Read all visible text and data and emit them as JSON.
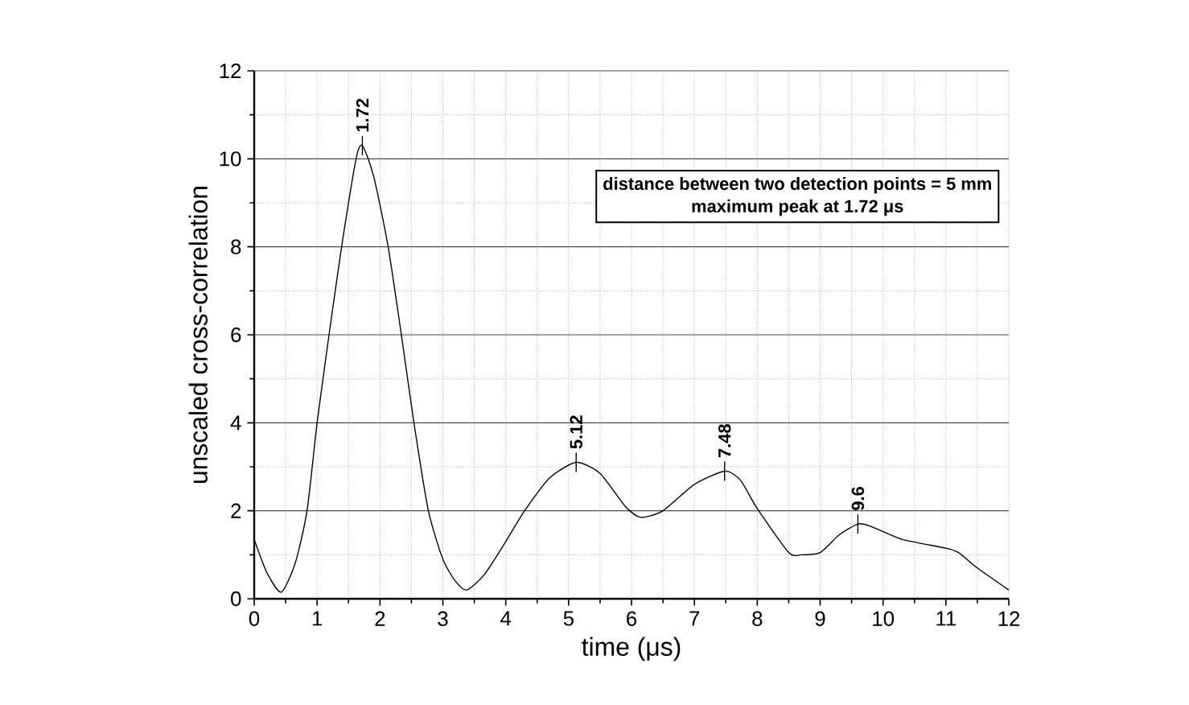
{
  "chart_data": {
    "type": "line",
    "xlabel": "time (μs)",
    "ylabel": "unscaled cross-correlation",
    "x": [
      0,
      0.2,
      0.43,
      0.65,
      0.84,
      1.0,
      1.19,
      1.39,
      1.62,
      1.72,
      1.9,
      2.13,
      2.34,
      2.54,
      2.77,
      3.0,
      3.2,
      3.38,
      3.66,
      4.0,
      4.3,
      4.7,
      5.12,
      5.5,
      5.9,
      6.15,
      6.5,
      7.0,
      7.48,
      7.73,
      8.0,
      8.5,
      8.7,
      9.0,
      9.3,
      9.6,
      9.8,
      10.3,
      11.0,
      11.2,
      11.5,
      12.0
    ],
    "series": [
      {
        "color": "#000000",
        "values": [
          1.35,
          0.6,
          0.15,
          0.8,
          2.0,
          4.0,
          6.0,
          8.0,
          10.0,
          10.3,
          9.6,
          8.0,
          6.0,
          4.0,
          2.0,
          0.9,
          0.4,
          0.2,
          0.55,
          1.3,
          2.0,
          2.75,
          3.1,
          2.85,
          2.1,
          1.85,
          2.0,
          2.6,
          2.9,
          2.7,
          2.05,
          1.05,
          1.0,
          1.05,
          1.45,
          1.7,
          1.65,
          1.35,
          1.15,
          1.05,
          0.7,
          0.2
        ]
      }
    ],
    "xlim": [
      0,
      12
    ],
    "ylim": [
      0,
      12
    ],
    "xticks": [
      0,
      1,
      2,
      3,
      4,
      5,
      6,
      7,
      8,
      9,
      10,
      11,
      12
    ],
    "yticks": [
      0,
      2,
      4,
      6,
      8,
      10,
      12
    ],
    "grid": true,
    "line_style": "solid",
    "marker": "none",
    "annotations": [
      {
        "text": "1.72",
        "x": 1.72,
        "y": 10.3
      },
      {
        "text": "5.12",
        "x": 5.12,
        "y": 3.1
      },
      {
        "text": "7.48",
        "x": 7.48,
        "y": 2.9
      },
      {
        "text": "9.6",
        "x": 9.6,
        "y": 1.7
      },
      "distance between two detection points = 5 mm",
      "maximum peak at 1.72 μs"
    ]
  }
}
